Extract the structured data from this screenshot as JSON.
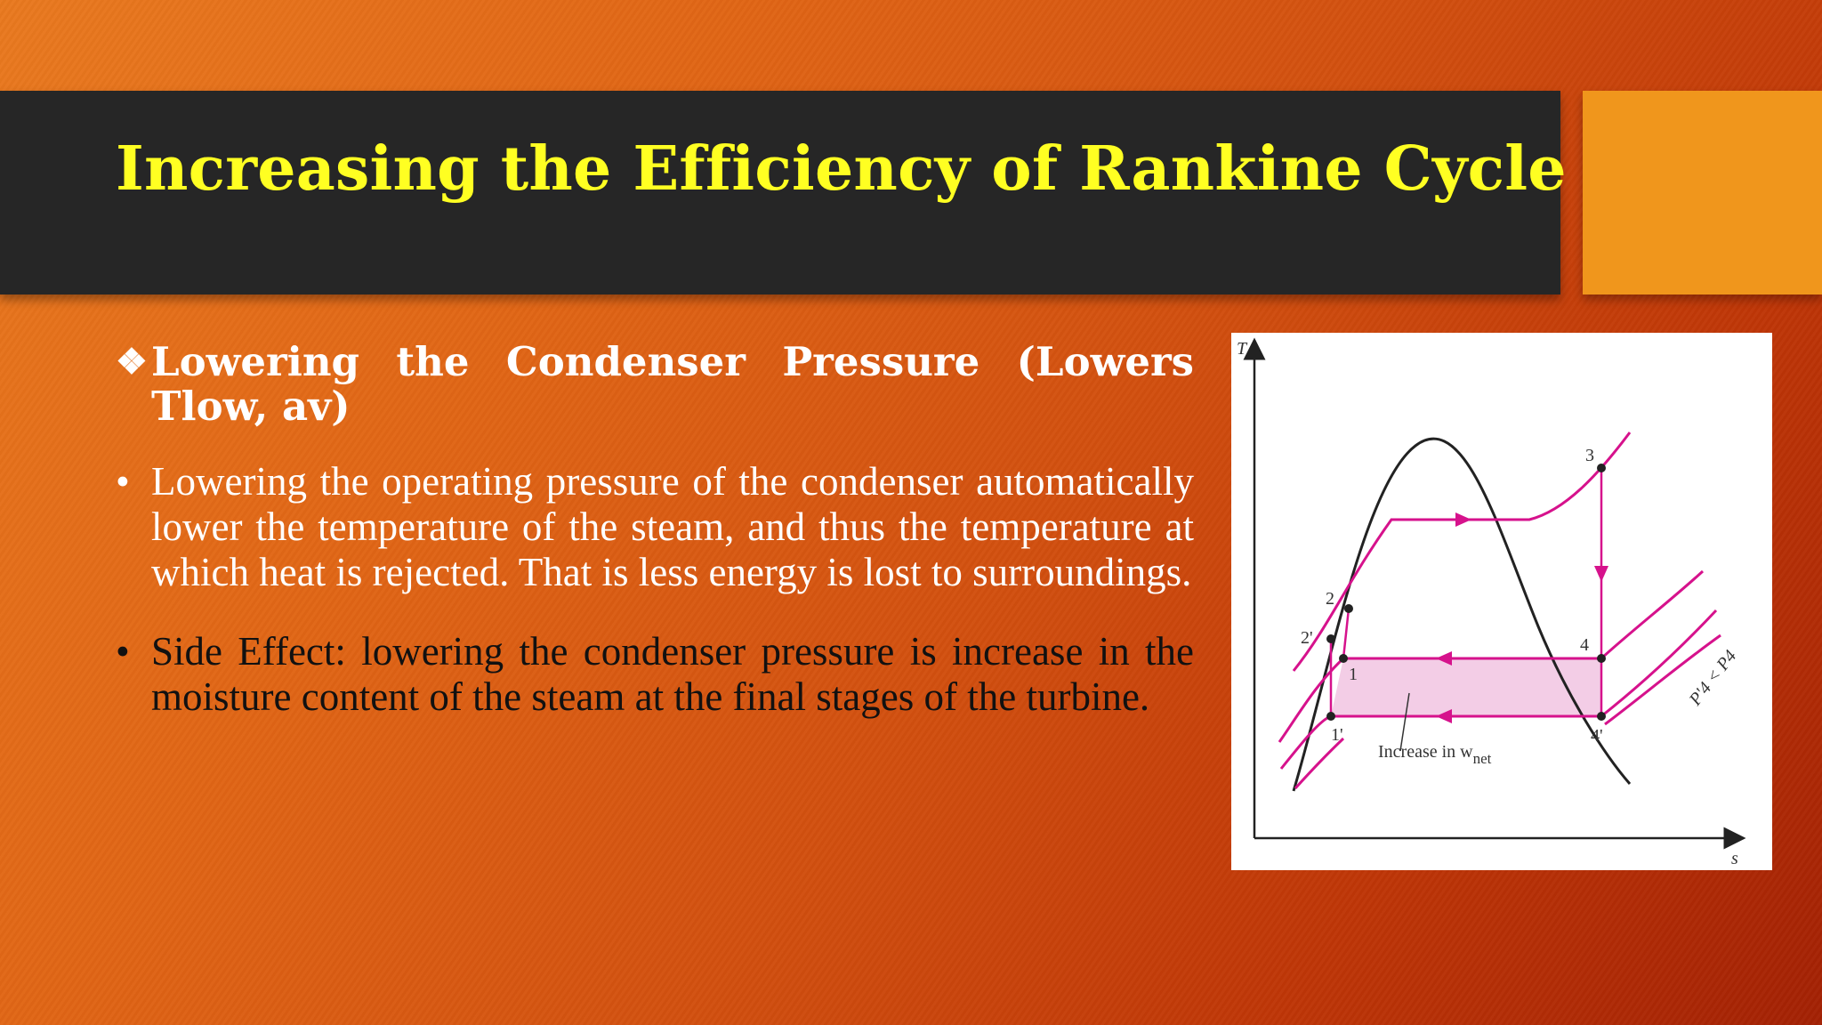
{
  "slide": {
    "title": "Increasing the Efficiency of Rankine Cycle",
    "heading_marker": "❖",
    "heading": "Lowering the Condenser Pressure (Lowers Tlow, av)",
    "bullet_marker": "•",
    "bullets": [
      "Lowering the operating pressure of the condenser automatically lower the temperature of the steam, and thus the temperature at which heat is rejected. That is less energy is lost to surroundings.",
      "Side Effect: lowering the condenser pressure is increase in the moisture content of the steam at the final stages of the turbine."
    ]
  },
  "diagram": {
    "axis_y": "T",
    "axis_x": "s",
    "points": [
      "1",
      "1'",
      "2",
      "2'",
      "3",
      "4",
      "4'"
    ],
    "shaded_label_main": "Increase in w",
    "shaded_label_sub": "net",
    "pressure_label": "P'4 < P4"
  },
  "colors": {
    "title_text": "#ffff22",
    "title_bar": "#262626",
    "accent": "#f0961c",
    "cycle_lines": "#d6128c",
    "shaded_area": "#f3cde6"
  }
}
